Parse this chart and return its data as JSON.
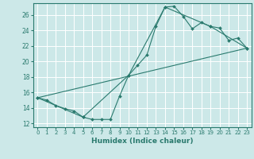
{
  "xlabel": "Humidex (Indice chaleur)",
  "bg_color": "#cce8e8",
  "grid_color": "#ffffff",
  "line_color": "#2a7a6e",
  "xlim": [
    -0.5,
    23.5
  ],
  "ylim": [
    11.5,
    27.5
  ],
  "xticks": [
    0,
    1,
    2,
    3,
    4,
    5,
    6,
    7,
    8,
    9,
    10,
    11,
    12,
    13,
    14,
    15,
    16,
    17,
    18,
    19,
    20,
    21,
    22,
    23
  ],
  "yticks": [
    12,
    14,
    16,
    18,
    20,
    22,
    24,
    26
  ],
  "line1_x": [
    0,
    1,
    2,
    3,
    4,
    5,
    6,
    7,
    8,
    9,
    10,
    11,
    12,
    13,
    14,
    15,
    16,
    17,
    18,
    19,
    20,
    21,
    22,
    23
  ],
  "line1_y": [
    15.3,
    15.0,
    14.3,
    13.9,
    13.6,
    12.8,
    12.5,
    12.5,
    12.5,
    15.5,
    18.2,
    19.5,
    20.8,
    24.5,
    27.0,
    27.1,
    25.8,
    24.2,
    25.0,
    24.5,
    24.3,
    22.7,
    23.0,
    21.7
  ],
  "line2_x": [
    0,
    5,
    10,
    14,
    19,
    23
  ],
  "line2_y": [
    15.3,
    12.8,
    18.2,
    27.0,
    24.5,
    21.7
  ],
  "line3_x": [
    0,
    23
  ],
  "line3_y": [
    15.3,
    21.7
  ]
}
